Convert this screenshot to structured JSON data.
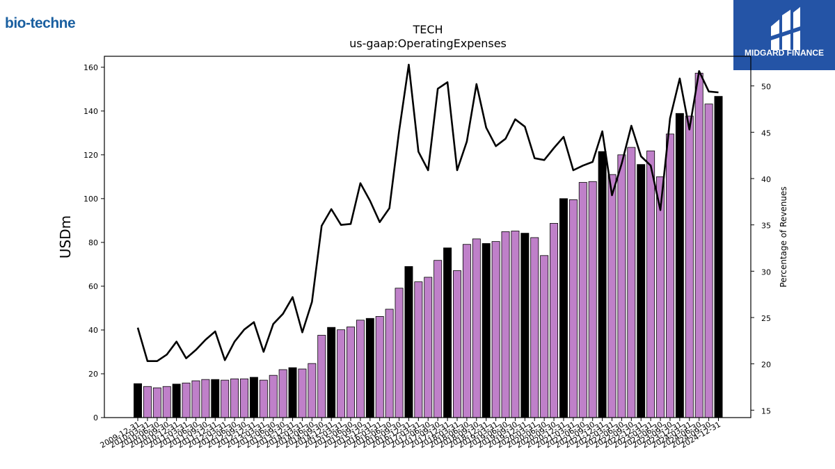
{
  "logos": {
    "left_text": "bio-techne",
    "right_text": "MIDGARD FINANCE"
  },
  "chart_data": {
    "type": "bar",
    "title": "TECH",
    "subtitle": "us-gaap:OperatingExpenses",
    "ylabel": "USDm",
    "y2label": "Percentage of Revenues",
    "ylim": [
      0,
      165
    ],
    "y2lim": [
      14.2,
      53.2
    ],
    "yticks": [
      0,
      20,
      40,
      60,
      80,
      100,
      120,
      140,
      160
    ],
    "y2ticks": [
      15,
      20,
      25,
      30,
      35,
      40,
      45,
      50
    ],
    "grid": false,
    "colors": {
      "quarter_bar": "#bf80c9",
      "annual_bar": "#000000",
      "line": "#000000"
    },
    "categories": [
      "2009-12-31",
      "2010-03-31",
      "2010-06-30",
      "2010-09-30",
      "2010-12-31",
      "2011-03-31",
      "2011-06-30",
      "2011-09-30",
      "2011-12-31",
      "2012-03-31",
      "2012-06-30",
      "2012-09-30",
      "2012-12-31",
      "2013-03-31",
      "2013-06-30",
      "2013-09-30",
      "2013-12-31",
      "2014-03-31",
      "2014-06-30",
      "2014-09-30",
      "2014-12-31",
      "2015-03-31",
      "2015-06-30",
      "2015-09-30",
      "2015-12-31",
      "2016-03-31",
      "2016-06-30",
      "2016-09-30",
      "2016-12-31",
      "2017-03-31",
      "2017-06-30",
      "2017-09-30",
      "2017-12-31",
      "2018-03-31",
      "2018-06-30",
      "2018-09-30",
      "2018-12-31",
      "2019-03-31",
      "2019-06-30",
      "2019-09-30",
      "2019-12-31",
      "2020-03-31",
      "2020-06-30",
      "2020-09-30",
      "2020-12-31",
      "2021-03-31",
      "2021-06-30",
      "2021-09-30",
      "2021-12-31",
      "2022-03-31",
      "2022-06-30",
      "2022-09-30",
      "2022-12-31",
      "2023-03-31",
      "2023-06-30",
      "2023-09-30",
      "2023-12-31",
      "2024-03-31",
      "2024-06-30",
      "2024-09-30",
      "2024-12-31"
    ],
    "series": [
      {
        "kind": "bar",
        "values": [
          15.5,
          14.2,
          13.6,
          14.2,
          15.3,
          15.8,
          16.8,
          17.4,
          17.4,
          17.1,
          17.7,
          17.7,
          18.4,
          17.1,
          19.3,
          21.9,
          22.8,
          22.2,
          24.7,
          37.6,
          41.2,
          40.1,
          41.4,
          44.5,
          45.3,
          46.2,
          49.5,
          59.1,
          69,
          62,
          64.1,
          71.8,
          77.5,
          67.1,
          79.1,
          81.6,
          79.5,
          80.4,
          84.9,
          85.2,
          84.2,
          82.2,
          74,
          88.7,
          100,
          99.5,
          107.4,
          107.8,
          121.5,
          111,
          120,
          123.4,
          115.6,
          121.8,
          110,
          129.5,
          138.9,
          137.7,
          157.3,
          143.2,
          146.7
        ],
        "annual_flags": [
          1,
          0,
          0,
          0,
          1,
          0,
          0,
          0,
          1,
          0,
          0,
          0,
          1,
          0,
          0,
          0,
          1,
          0,
          0,
          0,
          1,
          0,
          0,
          0,
          1,
          0,
          0,
          0,
          1,
          0,
          0,
          0,
          1,
          0,
          0,
          0,
          1,
          0,
          0,
          0,
          1,
          0,
          0,
          0,
          1,
          0,
          0,
          0,
          1,
          0,
          0,
          0,
          1,
          0,
          0,
          0,
          1,
          0,
          0,
          0,
          1
        ]
      },
      {
        "kind": "line",
        "axis": "right",
        "values": [
          23.9,
          20.3,
          20.3,
          21,
          22.4,
          20.6,
          21.5,
          22.6,
          23.5,
          20.4,
          22.4,
          23.7,
          24.5,
          21.3,
          24.3,
          25.4,
          27.2,
          23.4,
          26.7,
          34.9,
          36.7,
          35,
          35.1,
          39.5,
          37.6,
          35.3,
          36.8,
          45.1,
          52.3,
          42.9,
          40.9,
          49.7,
          50.4,
          40.9,
          44,
          50.2,
          45.5,
          43.5,
          44.3,
          46.4,
          45.6,
          42.2,
          42,
          43.3,
          44.5,
          40.9,
          41.4,
          41.8,
          45.1,
          38.2,
          41.6,
          45.7,
          42.4,
          41.4,
          36.6,
          46.5,
          50.8,
          45.3,
          51.6,
          49.4,
          49.3
        ]
      }
    ]
  }
}
